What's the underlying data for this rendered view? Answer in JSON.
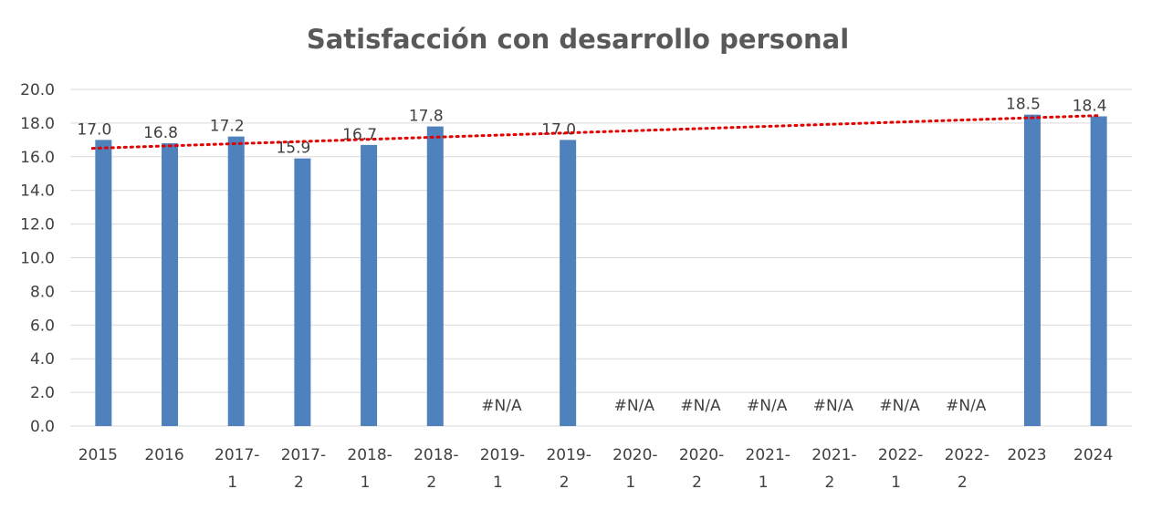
{
  "chart_data": {
    "type": "bar",
    "title": "Satisfacción con desarrollo personal",
    "xlabel": "",
    "ylabel": "",
    "ylim": [
      0,
      20
    ],
    "yticks": [
      "0.0",
      "2.0",
      "4.0",
      "6.0",
      "8.0",
      "10.0",
      "12.0",
      "14.0",
      "16.0",
      "18.0",
      "20.0"
    ],
    "grid": true,
    "legend": "none",
    "categories": [
      {
        "line1": "2015",
        "line2": ""
      },
      {
        "line1": "2016",
        "line2": ""
      },
      {
        "line1": "2017-",
        "line2": "1"
      },
      {
        "line1": "2017-",
        "line2": "2"
      },
      {
        "line1": "2018-",
        "line2": "1"
      },
      {
        "line1": "2018-",
        "line2": "2"
      },
      {
        "line1": "2019-",
        "line2": "1"
      },
      {
        "line1": "2019-",
        "line2": "2"
      },
      {
        "line1": "2020-",
        "line2": "1"
      },
      {
        "line1": "2020-",
        "line2": "2"
      },
      {
        "line1": "2021-",
        "line2": "1"
      },
      {
        "line1": "2021-",
        "line2": "2"
      },
      {
        "line1": "2022-",
        "line2": "1"
      },
      {
        "line1": "2022-",
        "line2": "2"
      },
      {
        "line1": "2023",
        "line2": ""
      },
      {
        "line1": "2024",
        "line2": ""
      }
    ],
    "values": [
      17.0,
      16.8,
      17.2,
      15.9,
      16.7,
      17.8,
      null,
      17.0,
      null,
      null,
      null,
      null,
      null,
      null,
      18.5,
      18.4
    ],
    "data_labels": [
      "17.0",
      "16.8",
      "17.2",
      "15.9",
      "16.7",
      "17.8",
      "#N/A",
      "17.0",
      "#N/A",
      "#N/A",
      "#N/A",
      "#N/A",
      "#N/A",
      "#N/A",
      "18.5",
      "18.4"
    ],
    "trendline": {
      "type": "linear",
      "start": 16.5,
      "end": 18.45,
      "color": "#e00000",
      "style": "dotted"
    },
    "colors": {
      "bar": "#4f81bd",
      "text": "#404040",
      "title": "#595959",
      "grid": "#d9d9d9",
      "trend": "#e00000"
    }
  }
}
